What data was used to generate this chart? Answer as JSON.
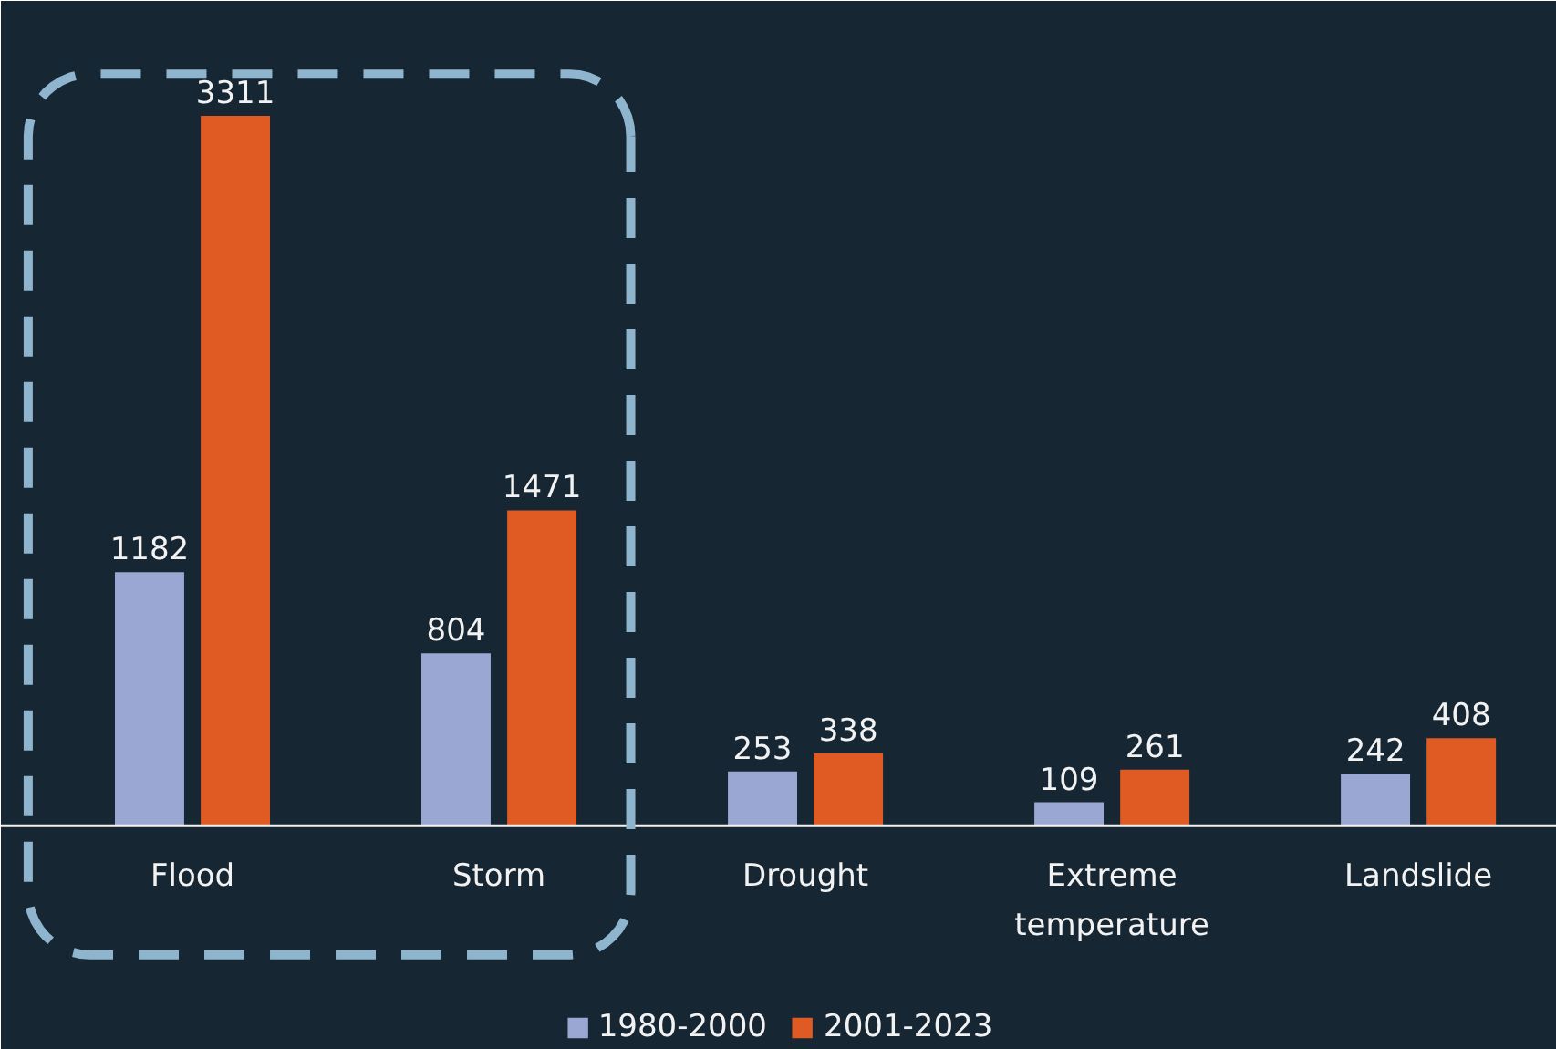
{
  "chart_data": {
    "type": "bar",
    "categories": [
      "Flood",
      "Storm",
      "Drought",
      "Extreme temperature",
      "Landslide"
    ],
    "series": [
      {
        "name": "1980-2000",
        "color": "#9ba7d3",
        "values": [
          1182,
          804,
          253,
          109,
          242
        ]
      },
      {
        "name": "2001-2023",
        "color": "#e05a24",
        "values": [
          3311,
          1471,
          338,
          261,
          408
        ]
      }
    ],
    "data_labels": true,
    "grid": false,
    "legend": "bottom"
  }
}
